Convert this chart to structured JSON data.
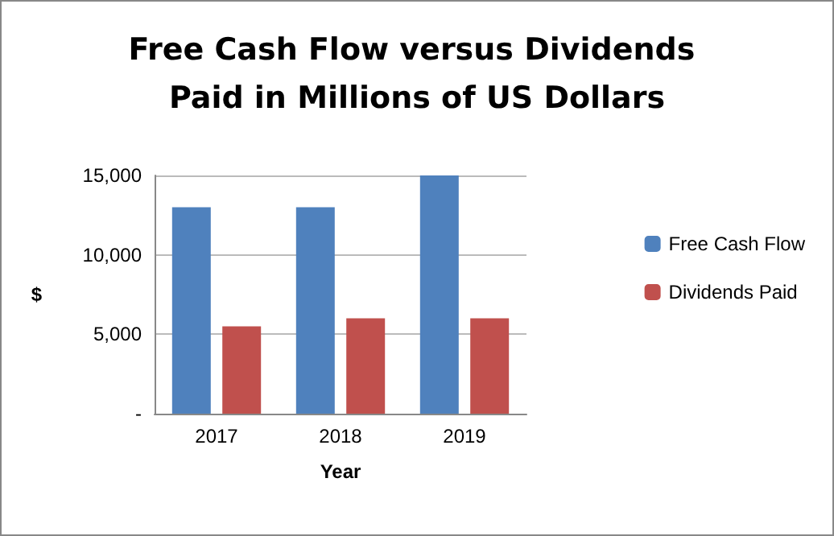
{
  "chart_data": {
    "type": "bar",
    "title": "Free Cash Flow versus Dividends Paid in Millions of US Dollars",
    "xlabel": "Year",
    "ylabel": "$",
    "categories": [
      "2017",
      "2018",
      "2019"
    ],
    "series": [
      {
        "name": "Free Cash Flow",
        "color": "#4f81bd",
        "values": [
          13000,
          13000,
          15000
        ]
      },
      {
        "name": "Dividends Paid",
        "color": "#c0504d",
        "values": [
          5500,
          6000,
          6000
        ]
      }
    ],
    "ylim": [
      0,
      15000
    ],
    "yticks": [
      {
        "value": 0,
        "label": "-"
      },
      {
        "value": 5000,
        "label": "5,000"
      },
      {
        "value": 10000,
        "label": "10,000"
      },
      {
        "value": 15000,
        "label": "15,000"
      }
    ],
    "grid": true,
    "legend": "right"
  }
}
